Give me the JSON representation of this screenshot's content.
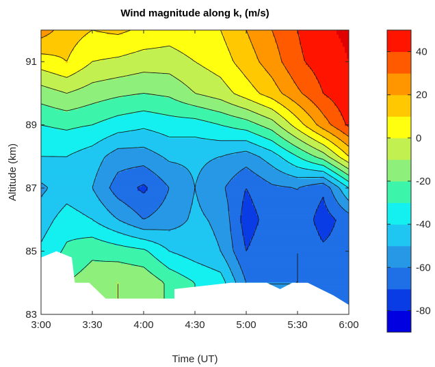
{
  "chart_data": {
    "type": "heatmap",
    "subtype": "filled-contour",
    "title": "Wind magnitude along k, (m/s)",
    "xlabel": "Time (UT)",
    "ylabel": "Altitude (km)",
    "x_ticks": [
      "3:00",
      "3:30",
      "4:00",
      "4:30",
      "5:00",
      "5:30",
      "6:00"
    ],
    "x_tick_hours": [
      3.0,
      3.5,
      4.0,
      4.5,
      5.0,
      5.5,
      6.0
    ],
    "xlim": [
      3.0,
      6.0
    ],
    "y_ticks": [
      83,
      85,
      87,
      89,
      91
    ],
    "ylim": [
      83,
      92
    ],
    "colorbar": {
      "ticks": [
        -80,
        -60,
        -40,
        -20,
        0,
        20,
        40
      ],
      "range": [
        -90,
        50
      ],
      "levels": [
        -90,
        -80,
        -70,
        -60,
        -50,
        -40,
        -30,
        -20,
        -10,
        0,
        10,
        20,
        30,
        40,
        50
      ],
      "colors": [
        "#00008b",
        "#0000e0",
        "#0a3ce6",
        "#1f6fe6",
        "#2798e6",
        "#1fc6f2",
        "#14f0f0",
        "#3cf5aa",
        "#8ef07a",
        "#c2f050",
        "#ffff10",
        "#ffc800",
        "#ff9600",
        "#ff5a00",
        "#ff1400",
        "#e00000"
      ],
      "position": "right"
    },
    "x_hours": [
      3.0,
      3.25,
      3.5,
      3.75,
      4.0,
      4.25,
      4.5,
      4.75,
      5.0,
      5.25,
      5.5,
      5.75,
      6.0
    ],
    "y_km": [
      84,
      85,
      86,
      87,
      88,
      89,
      90,
      91,
      92
    ],
    "values_mps": [
      [
        -30,
        -20,
        -15,
        -10,
        -12,
        -22,
        -30,
        -35,
        -60,
        -60,
        -60,
        -62,
        -60
      ],
      [
        -38,
        -28,
        -22,
        -25,
        -28,
        -40,
        -45,
        -50,
        -70,
        -62,
        -60,
        -68,
        -65
      ],
      [
        -45,
        -35,
        -40,
        -50,
        -60,
        -55,
        -48,
        -52,
        -75,
        -65,
        -62,
        -75,
        -65
      ],
      [
        -52,
        -45,
        -50,
        -65,
        -72,
        -60,
        -50,
        -58,
        -70,
        -62,
        -60,
        -68,
        -40
      ],
      [
        -40,
        -40,
        -45,
        -55,
        -55,
        -48,
        -48,
        -50,
        -55,
        -45,
        -30,
        -15,
        10
      ],
      [
        -30,
        -28,
        -30,
        -35,
        -38,
        -35,
        -35,
        -30,
        -25,
        -15,
        5,
        25,
        42
      ],
      [
        -15,
        -10,
        -15,
        -18,
        -20,
        -18,
        -10,
        -5,
        5,
        15,
        28,
        40,
        48
      ],
      [
        5,
        10,
        0,
        -2,
        -5,
        -5,
        0,
        5,
        15,
        25,
        38,
        45,
        50
      ],
      [
        25,
        15,
        10,
        12,
        8,
        5,
        8,
        10,
        20,
        30,
        40,
        48,
        52
      ]
    ],
    "lower_boundary_km": [
      [
        3.0,
        84.8
      ],
      [
        3.15,
        85.0
      ],
      [
        3.3,
        84.8
      ],
      [
        3.33,
        84.0
      ],
      [
        3.47,
        84.0
      ],
      [
        3.63,
        83.5
      ],
      [
        4.3,
        83.5
      ],
      [
        4.3,
        83.8
      ],
      [
        4.85,
        84.0
      ],
      [
        5.2,
        84.0
      ],
      [
        5.33,
        83.8
      ],
      [
        5.45,
        84.0
      ],
      [
        5.6,
        84.0
      ],
      [
        5.85,
        83.6
      ],
      [
        6.0,
        83.3
      ]
    ],
    "grid": false
  }
}
